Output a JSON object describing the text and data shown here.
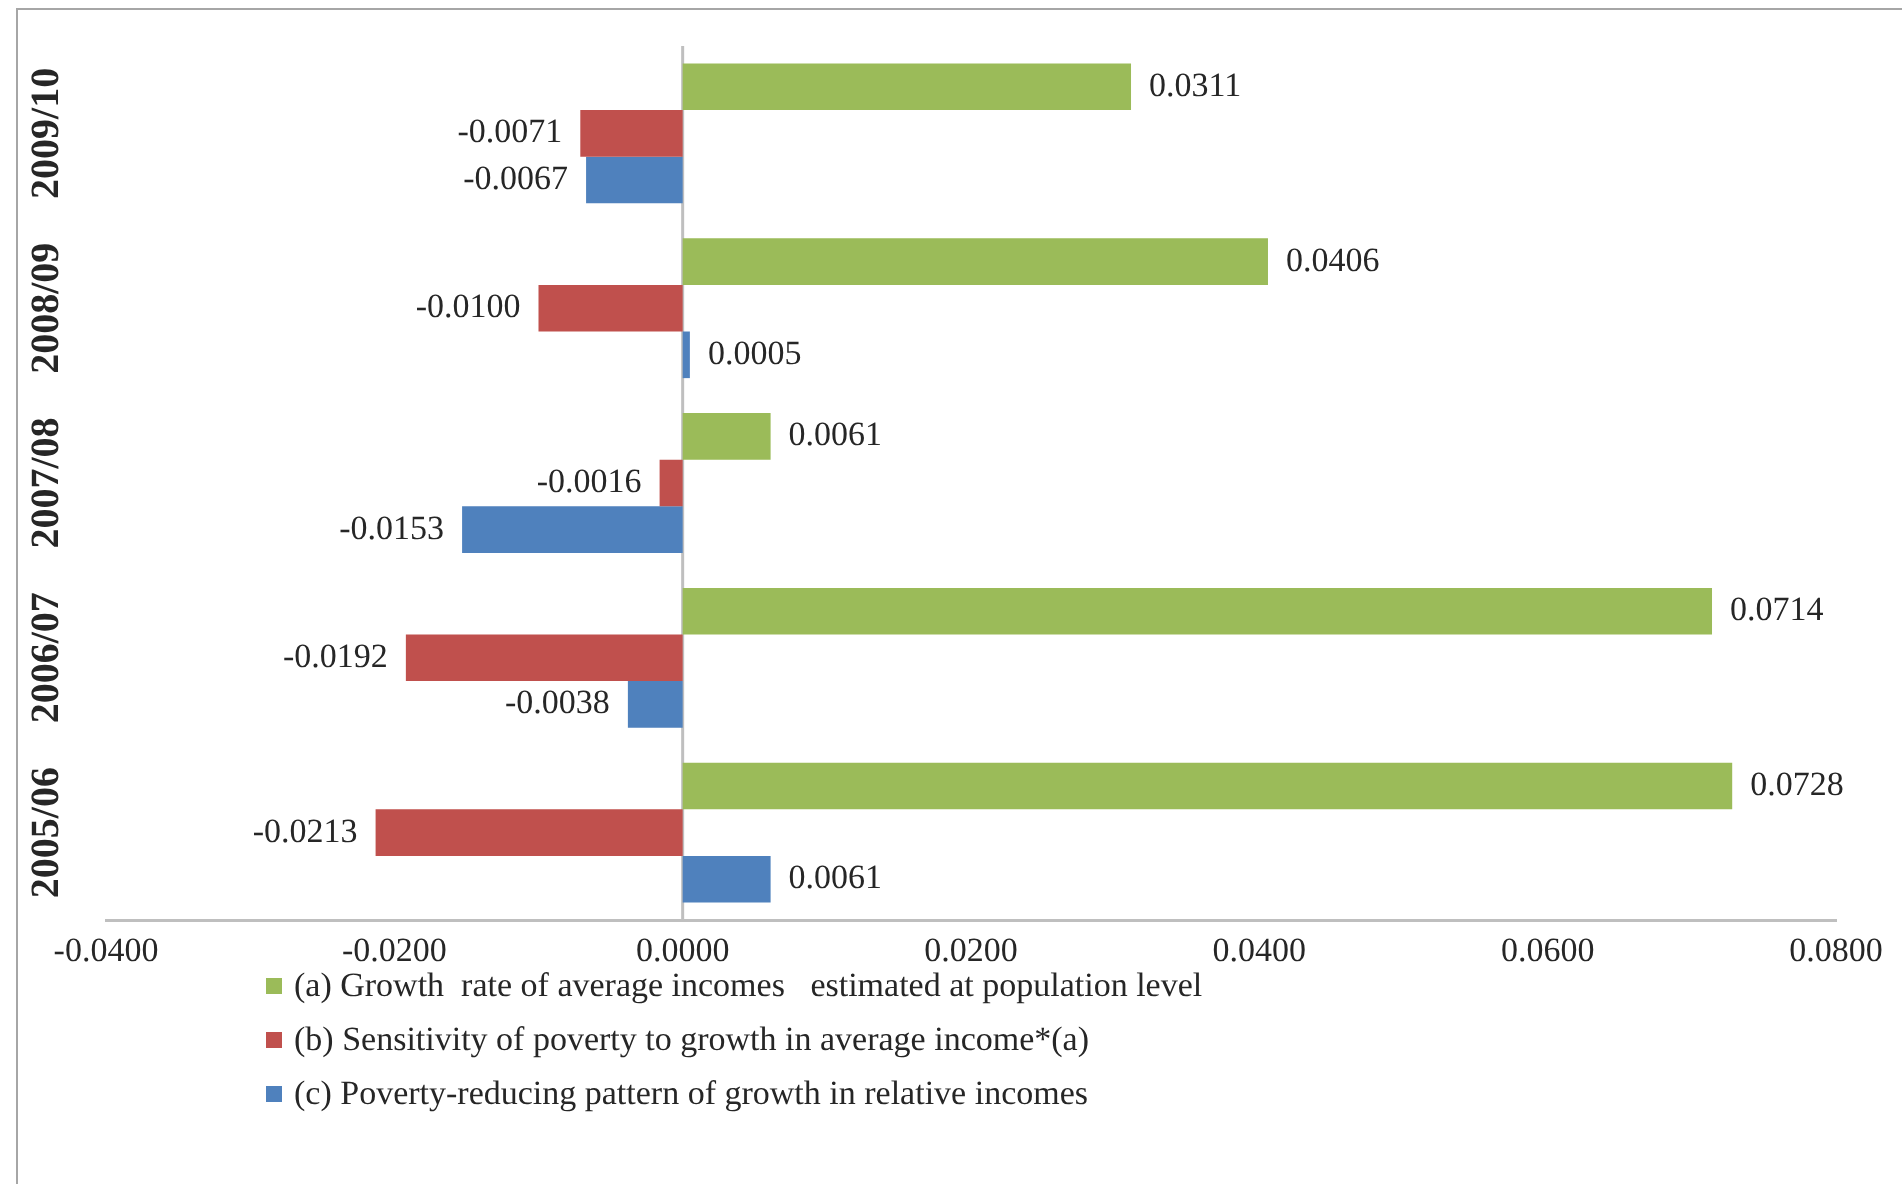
{
  "chart_data": {
    "type": "bar",
    "orientation": "horizontal",
    "categories": [
      "2009/10",
      "2008/09",
      "2007/08",
      "2006/07",
      "2005/06"
    ],
    "series": [
      {
        "name": "(a) Growth  rate of average incomes   estimated at population level",
        "color": "#9bbb59",
        "values": [
          0.0311,
          0.0406,
          0.0061,
          0.0714,
          0.0728
        ],
        "value_labels": [
          "0.0311",
          "0.0406",
          "0.0061",
          "0.0714",
          "0.0728"
        ]
      },
      {
        "name": "(b) Sensitivity of poverty to growth in average income*(a)",
        "color": "#c0504d",
        "values": [
          -0.0071,
          -0.01,
          -0.0016,
          -0.0192,
          -0.0213
        ],
        "value_labels": [
          "-0.0071",
          "-0.0100",
          "-0.0016",
          "-0.0192",
          "-0.0213"
        ]
      },
      {
        "name": "(c) Poverty-reducing pattern of growth in relative incomes",
        "color": "#4f81bd",
        "values": [
          -0.0067,
          0.0005,
          -0.0153,
          -0.0038,
          0.0061
        ],
        "value_labels": [
          "-0.0067",
          "0.0005",
          "-0.0153",
          "-0.0038",
          "0.0061"
        ]
      }
    ],
    "xlim": [
      -0.04,
      0.08
    ],
    "xticks": [
      {
        "value": -0.04,
        "label": "-0.0400"
      },
      {
        "value": -0.02,
        "label": "-0.0200"
      },
      {
        "value": 0,
        "label": "0.0000"
      },
      {
        "value": 0.02,
        "label": "0.0200"
      },
      {
        "value": 0.04,
        "label": "0.0400"
      },
      {
        "value": 0.06,
        "label": "0.0600"
      },
      {
        "value": 0.08,
        "label": "0.0800"
      }
    ],
    "legend": "bottom"
  }
}
